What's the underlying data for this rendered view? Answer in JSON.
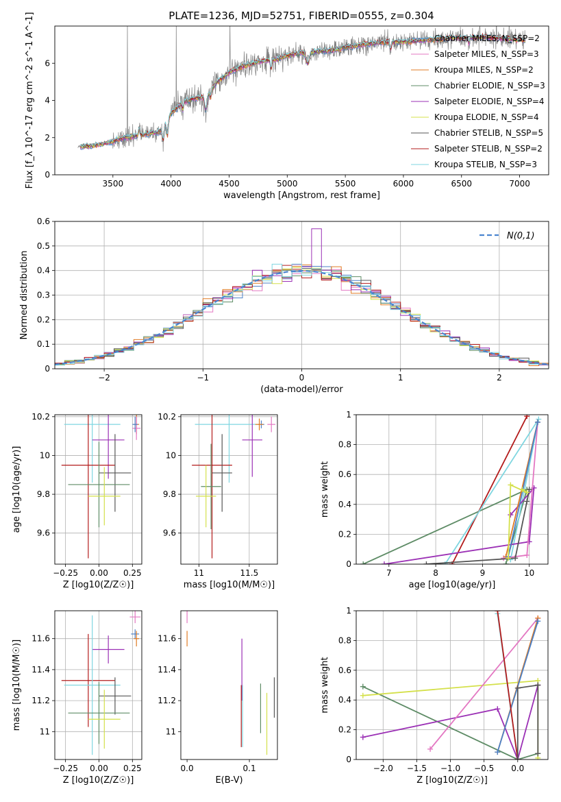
{
  "figure_title": "PLATE=1236, MJD=52751, FIBERID=0555, z=0.304",
  "models": [
    {
      "label": "Chabrier MILES, N_SSP=2",
      "color": "#4c81c7"
    },
    {
      "label": "Salpeter MILES, N_SSP=3",
      "color": "#e377c2"
    },
    {
      "label": "Kroupa MILES, N_SSP=2",
      "color": "#e07b24"
    },
    {
      "label": "Chabrier ELODIE, N_SSP=3",
      "color": "#5d8b65"
    },
    {
      "label": "Salpeter ELODIE, N_SSP=4",
      "color": "#9b30b5"
    },
    {
      "label": "Kroupa ELODIE, N_SSP=4",
      "color": "#d4e04a"
    },
    {
      "label": "Chabrier STELIB, N_SSP=5",
      "color": "#555555"
    },
    {
      "label": "Salpeter STELIB, N_SSP=2",
      "color": "#b31b1b"
    },
    {
      "label": "Kroupa STELIB, N_SSP=3",
      "color": "#7fd6e0"
    }
  ],
  "chart_data": [
    {
      "id": "spectrum",
      "type": "line",
      "title": "PLATE=1236, MJD=52751, FIBERID=0555, z=0.304",
      "xlabel": "wavelength [Angstrom, rest frame]",
      "ylabel": "Flux [f_λ 10^-17 erg cm^-2 s^-1 A^-1]",
      "xlim": [
        3000,
        7250
      ],
      "ylim": [
        0,
        8
      ],
      "xticks": [
        3500,
        4000,
        4500,
        5000,
        5500,
        6000,
        6500,
        7000
      ],
      "yticks": [
        0,
        2,
        4,
        6
      ],
      "data_color": "#808080",
      "continuum": {
        "x": [
          3200,
          3300,
          3400,
          3500,
          3600,
          3700,
          3800,
          3900,
          4000,
          4100,
          4200,
          4300,
          4400,
          4500,
          4600,
          4700,
          4800,
          4900,
          5000,
          5100,
          5200,
          5300,
          5400,
          5500,
          5600,
          5700,
          5800,
          5900,
          6000,
          6100,
          6200,
          6300,
          6400,
          6500,
          6600,
          6700,
          6800,
          6900,
          7000,
          7050
        ],
        "y": [
          1.5,
          1.55,
          1.65,
          1.8,
          2.0,
          2.1,
          2.2,
          2.3,
          3.3,
          3.9,
          4.1,
          4.2,
          5.0,
          5.5,
          5.8,
          6.0,
          6.15,
          6.2,
          6.4,
          6.55,
          6.6,
          6.65,
          6.7,
          6.85,
          6.95,
          7.05,
          7.1,
          7.15,
          7.15,
          7.2,
          7.25,
          7.3,
          7.35,
          7.35,
          7.4,
          7.4,
          7.35,
          7.3,
          7.25,
          7.2
        ]
      }
    },
    {
      "id": "residual-histogram",
      "type": "line",
      "xlabel": "(data-model)/error",
      "ylabel": "Normed distribution",
      "xlim": [
        -2.5,
        2.5
      ],
      "ylim": [
        0,
        0.6
      ],
      "xticks": [
        -2,
        -1,
        0,
        1,
        2
      ],
      "yticks": [
        0.0,
        0.1,
        0.2,
        0.3,
        0.4,
        0.5,
        0.6
      ],
      "legend": {
        "label": "N(0,1)",
        "location": "top-right",
        "color": "#4a85d0"
      },
      "bins": 50,
      "grid": true
    },
    {
      "id": "age-vs-Z",
      "type": "scatter",
      "xlabel": "Z [log10(Z/Z☉)]",
      "ylabel": "age [log10(age/yr)]",
      "xlim": [
        -0.33,
        0.32
      ],
      "ylim": [
        9.44,
        10.21
      ],
      "xticks": [
        -0.25,
        0.0,
        0.25
      ],
      "xtick_labels": [
        "−0.25",
        "0.00",
        "0.25"
      ],
      "yticks": [
        9.6,
        9.8,
        10.0,
        10.2
      ],
      "grid": true,
      "series": [
        {
          "model": 8,
          "x": -0.05,
          "y": 10.16,
          "xerr": 0.21,
          "yerr": 0.3
        },
        {
          "model": 2,
          "x": 0.28,
          "y": 10.16,
          "xerr": 0.02,
          "yerr": 0.05
        },
        {
          "model": 1,
          "x": 0.28,
          "y": 10.14,
          "xerr": 0.03,
          "yerr": 0.06
        },
        {
          "model": 0,
          "x": 0.27,
          "y": 10.16,
          "xerr": 0.02,
          "yerr": 0.04
        },
        {
          "model": 4,
          "x": 0.07,
          "y": 10.08,
          "xerr": 0.12,
          "yerr": 0.2
        },
        {
          "model": 7,
          "x": -0.08,
          "y": 9.95,
          "xerr": 0.2,
          "yerr": 0.48
        },
        {
          "model": 6,
          "x": 0.12,
          "y": 9.91,
          "xerr": 0.12,
          "yerr": 0.2
        },
        {
          "model": 3,
          "x": 0.0,
          "y": 9.85,
          "xerr": 0.23,
          "yerr": 0.22
        },
        {
          "model": 5,
          "x": 0.04,
          "y": 9.79,
          "xerr": 0.12,
          "yerr": 0.15
        }
      ]
    },
    {
      "id": "age-vs-mass",
      "type": "scatter",
      "xlabel": "mass [log10(M/M☉)]",
      "ylabel": "",
      "xlim": [
        10.82,
        11.78
      ],
      "ylim": [
        9.44,
        10.21
      ],
      "xticks": [
        11.0,
        11.5
      ],
      "yticks": [
        9.6,
        9.8,
        10.0,
        10.2
      ],
      "grid": true,
      "series": [
        {
          "model": 8,
          "x": 11.3,
          "y": 10.16,
          "xerr": 0.34,
          "yerr": 0.3
        },
        {
          "model": 0,
          "x": 11.62,
          "y": 10.16,
          "xerr": 0.03,
          "yerr": 0.02
        },
        {
          "model": 2,
          "x": 11.6,
          "y": 10.16,
          "xerr": 0.04,
          "yerr": 0.03
        },
        {
          "model": 1,
          "x": 11.72,
          "y": 10.16,
          "xerr": 0.04,
          "yerr": 0.04
        },
        {
          "model": 4,
          "x": 11.53,
          "y": 10.08,
          "xerr": 0.1,
          "yerr": 0.19
        },
        {
          "model": 7,
          "x": 11.13,
          "y": 9.95,
          "xerr": 0.2,
          "yerr": 0.48
        },
        {
          "model": 6,
          "x": 11.23,
          "y": 9.91,
          "xerr": 0.1,
          "yerr": 0.2
        },
        {
          "model": 3,
          "x": 11.12,
          "y": 9.84,
          "xerr": 0.1,
          "yerr": 0.22
        },
        {
          "model": 5,
          "x": 11.07,
          "y": 9.79,
          "xerr": 0.1,
          "yerr": 0.16
        }
      ]
    },
    {
      "id": "weight-vs-age",
      "type": "line",
      "xlabel": "age [log10(age/yr)]",
      "ylabel": "mass weight",
      "xlim": [
        6.3,
        10.4
      ],
      "ylim": [
        0,
        1
      ],
      "xticks": [
        7,
        8,
        9,
        10
      ],
      "yticks": [
        0.0,
        0.2,
        0.4,
        0.6,
        0.8,
        1.0
      ],
      "grid": true,
      "series": [
        {
          "model": 3,
          "x": [
            6.45,
            9.95,
            9.5
          ],
          "y": [
            0.0,
            0.5,
            0.0
          ]
        },
        {
          "model": 7,
          "x": [
            8.35,
            9.95
          ],
          "y": [
            0.0,
            0.99
          ]
        },
        {
          "model": 8,
          "x": [
            8.2,
            10.2,
            9.6
          ],
          "y": [
            0.0,
            0.97,
            0.03
          ]
        },
        {
          "model": 4,
          "x": [
            6.9,
            10.0,
            10.1,
            9.6
          ],
          "y": [
            0.0,
            0.15,
            0.51,
            0.33
          ]
        },
        {
          "model": 1,
          "x": [
            9.45,
            9.95,
            10.18
          ],
          "y": [
            0.04,
            0.06,
            0.95
          ]
        },
        {
          "model": 2,
          "x": [
            9.5,
            10.18
          ],
          "y": [
            0.05,
            0.95
          ]
        },
        {
          "model": 0,
          "x": [
            9.55,
            10.18
          ],
          "y": [
            0.05,
            0.95
          ]
        },
        {
          "model": 6,
          "x": [
            7.8,
            9.7,
            9.95,
            10.0
          ],
          "y": [
            0.0,
            0.04,
            0.42,
            0.5
          ]
        },
        {
          "model": 5,
          "x": [
            9.55,
            9.6,
            9.95,
            9.85
          ],
          "y": [
            0.04,
            0.53,
            0.48,
            0.5
          ]
        }
      ]
    },
    {
      "id": "mass-vs-Z",
      "type": "scatter",
      "xlabel": "Z [log10(Z/Z☉)]",
      "ylabel": "mass [log10(M/M☉)]",
      "xlim": [
        -0.33,
        0.32
      ],
      "ylim": [
        10.82,
        11.78
      ],
      "xticks": [
        -0.25,
        0.0,
        0.25
      ],
      "xtick_labels": [
        "−0.25",
        "0.00",
        "0.25"
      ],
      "yticks": [
        11.0,
        11.2,
        11.4,
        11.6
      ],
      "grid": true,
      "series": [
        {
          "model": 1,
          "x": 0.27,
          "y": 11.74,
          "xerr": 0.04,
          "yerr": 0.04
        },
        {
          "model": 0,
          "x": 0.27,
          "y": 11.63,
          "xerr": 0.03,
          "yerr": 0.03
        },
        {
          "model": 2,
          "x": 0.28,
          "y": 11.6,
          "xerr": 0.02,
          "yerr": 0.05
        },
        {
          "model": 4,
          "x": 0.07,
          "y": 11.53,
          "xerr": 0.12,
          "yerr": 0.09
        },
        {
          "model": 7,
          "x": -0.08,
          "y": 11.33,
          "xerr": 0.2,
          "yerr": 0.3
        },
        {
          "model": 8,
          "x": -0.05,
          "y": 11.3,
          "xerr": 0.21,
          "yerr": 0.45
        },
        {
          "model": 6,
          "x": 0.12,
          "y": 11.23,
          "xerr": 0.12,
          "yerr": 0.12
        },
        {
          "model": 3,
          "x": 0.0,
          "y": 11.12,
          "xerr": 0.23,
          "yerr": 0.2
        },
        {
          "model": 5,
          "x": 0.04,
          "y": 11.08,
          "xerr": 0.12,
          "yerr": 0.19
        }
      ]
    },
    {
      "id": "mass-vs-ebv",
      "type": "scatter",
      "xlabel": "E(B-V)",
      "ylabel": "",
      "xlim": [
        -0.01,
        0.145
      ],
      "ylim": [
        10.82,
        11.78
      ],
      "xticks": [
        0.0,
        0.1
      ],
      "xtick_labels": [
        "0.0",
        "0.1"
      ],
      "yticks": [
        11.0,
        11.2,
        11.4,
        11.6
      ],
      "grid": false,
      "series": [
        {
          "model": 1,
          "x": 0.0,
          "y": 11.74,
          "yerr": 0.04
        },
        {
          "model": 2,
          "x": 0.0,
          "y": 11.6,
          "yerr": 0.05
        },
        {
          "model": 4,
          "x": 0.088,
          "y": 11.4,
          "yerr": 0.2
        },
        {
          "model": 7,
          "x": 0.087,
          "y": 11.1,
          "yerr": 0.2
        },
        {
          "model": 8,
          "x": 0.089,
          "y": 11.1,
          "yerr": 0.2
        },
        {
          "model": 3,
          "x": 0.118,
          "y": 11.15,
          "yerr": 0.16
        },
        {
          "model": 5,
          "x": 0.128,
          "y": 11.05,
          "yerr": 0.2
        },
        {
          "model": 6,
          "x": 0.14,
          "y": 11.22,
          "yerr": 0.13
        }
      ]
    },
    {
      "id": "weight-vs-Z",
      "type": "line",
      "xlabel": "Z [log10(Z/Z☉)]",
      "ylabel": "mass weight",
      "xlim": [
        -2.4,
        0.45
      ],
      "ylim": [
        0,
        1
      ],
      "xticks": [
        -2.0,
        -1.5,
        -1.0,
        -0.5,
        0.0
      ],
      "xtick_labels": [
        "−2.0",
        "−1.5",
        "−1.0",
        "−0.5",
        "0.0"
      ],
      "yticks": [
        0.0,
        0.2,
        0.4,
        0.6,
        0.8,
        1.0
      ],
      "grid": true,
      "series": [
        {
          "model": 3,
          "x": [
            -2.3,
            0.0,
            0.3
          ],
          "y": [
            0.49,
            0.0,
            0.04
          ]
        },
        {
          "model": 5,
          "x": [
            -2.3,
            0.3,
            0.3
          ],
          "y": [
            0.43,
            0.53,
            0.01
          ]
        },
        {
          "model": 4,
          "x": [
            -2.3,
            -0.3,
            0.0,
            0.3
          ],
          "y": [
            0.15,
            0.34,
            0.0,
            0.5
          ]
        },
        {
          "model": 1,
          "x": [
            -1.3,
            0.3
          ],
          "y": [
            0.07,
            0.95
          ]
        },
        {
          "model": 2,
          "x": [
            -0.3,
            0.3
          ],
          "y": [
            0.05,
            0.95
          ]
        },
        {
          "model": 0,
          "x": [
            -0.3,
            0.3
          ],
          "y": [
            0.05,
            0.93
          ]
        },
        {
          "model": 8,
          "x": [
            -0.3,
            0.0
          ],
          "y": [
            0.98,
            0.0
          ]
        },
        {
          "model": 7,
          "x": [
            -0.3,
            0.0
          ],
          "y": [
            1.0,
            0.0
          ]
        },
        {
          "model": 6,
          "x": [
            0.0,
            0.0,
            0.3,
            0.3
          ],
          "y": [
            0.0,
            0.48,
            0.5,
            0.04
          ]
        }
      ]
    }
  ]
}
